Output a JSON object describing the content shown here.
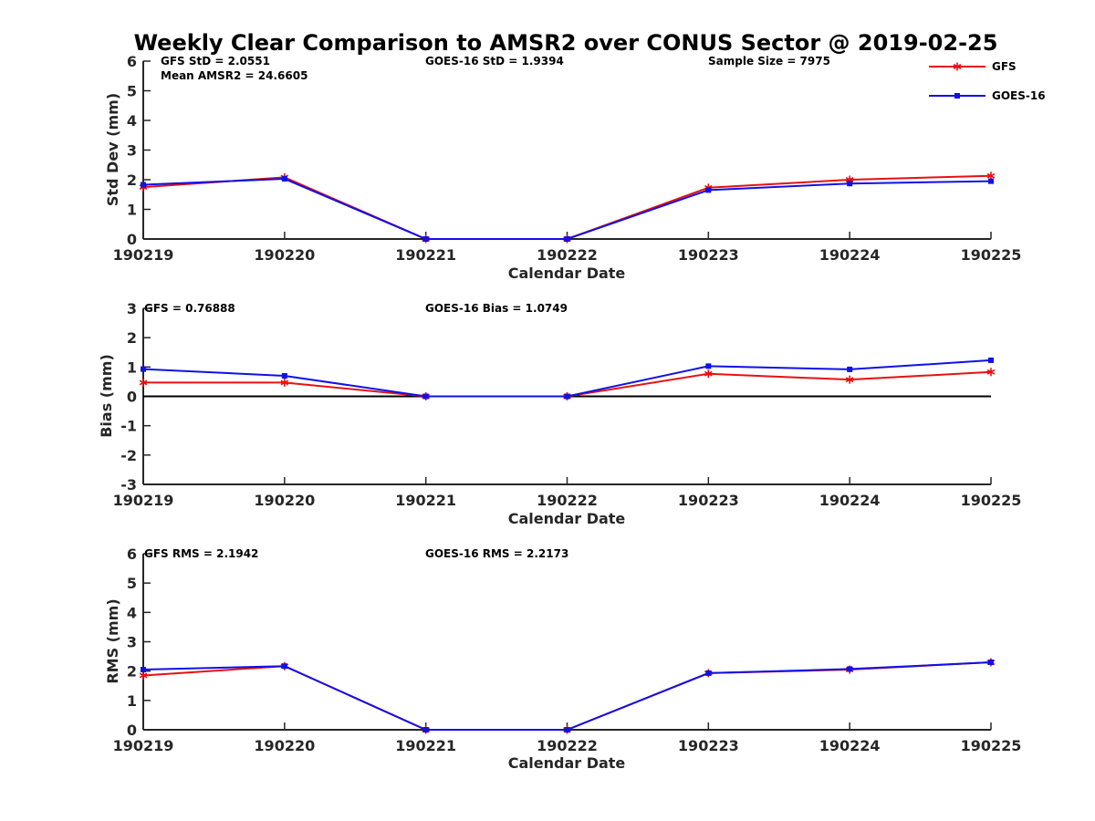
{
  "title": "Weekly Clear Comparison to AMSR2 over CONUS Sector @ 2019-02-25",
  "legend": {
    "placement": "top-right",
    "entries": [
      {
        "name": "GFS",
        "color": "#e81010",
        "marker": "asterisk"
      },
      {
        "name": "GOES-16",
        "color": "#1010e8",
        "marker": "square"
      }
    ]
  },
  "chart_data": [
    {
      "type": "line",
      "ylabel": "Std Dev (mm)",
      "xlabel": "Calendar Date",
      "ylim": [
        0,
        6
      ],
      "yticks": [
        "0",
        "1",
        "2",
        "3",
        "4",
        "5",
        "6"
      ],
      "categories": [
        "190219",
        "190220",
        "190221",
        "190222",
        "190223",
        "190224",
        "190225"
      ],
      "series": [
        {
          "name": "GFS",
          "color": "#e81010",
          "values": [
            1.75,
            2.08,
            0,
            0,
            1.73,
            2.0,
            2.13
          ]
        },
        {
          "name": "GOES-16",
          "color": "#1010e8",
          "values": [
            1.83,
            2.03,
            0,
            0,
            1.65,
            1.87,
            1.95
          ]
        }
      ],
      "zero_line": false,
      "annotations": [
        "GFS StD = 2.0551",
        "Mean AMSR2 = 24.6605",
        "GOES-16 StD = 1.9394",
        "Sample Size = 7975"
      ]
    },
    {
      "type": "line",
      "ylabel": "Bias (mm)",
      "xlabel": "Calendar Date",
      "ylim": [
        -3,
        3
      ],
      "yticks": [
        "-3",
        "-2",
        "-1",
        "0",
        "1",
        "2",
        "3"
      ],
      "categories": [
        "190219",
        "190220",
        "190221",
        "190222",
        "190223",
        "190224",
        "190225"
      ],
      "series": [
        {
          "name": "GFS",
          "color": "#e81010",
          "values": [
            0.47,
            0.47,
            0,
            0,
            0.77,
            0.57,
            0.83
          ]
        },
        {
          "name": "GOES-16",
          "color": "#1010e8",
          "values": [
            0.93,
            0.7,
            0,
            0,
            1.03,
            0.92,
            1.23
          ]
        }
      ],
      "zero_line": true,
      "annotations": [
        "GFS = 0.76888",
        "GOES-16 Bias  = 1.0749"
      ]
    },
    {
      "type": "line",
      "ylabel": "RMS (mm)",
      "xlabel": "Calendar Date",
      "ylim": [
        0,
        6
      ],
      "yticks": [
        "0",
        "1",
        "2",
        "3",
        "4",
        "5",
        "6"
      ],
      "categories": [
        "190219",
        "190220",
        "190221",
        "190222",
        "190223",
        "190224",
        "190225"
      ],
      "series": [
        {
          "name": "GFS",
          "color": "#e81010",
          "values": [
            1.85,
            2.17,
            0,
            0,
            1.93,
            2.05,
            2.3
          ]
        },
        {
          "name": "GOES-16",
          "color": "#1010e8",
          "values": [
            2.05,
            2.17,
            0,
            0,
            1.93,
            2.07,
            2.3
          ]
        }
      ],
      "zero_line": false,
      "annotations": [
        "GFS RMS = 2.1942",
        "GOES-16 RMS = 2.2173"
      ]
    }
  ]
}
